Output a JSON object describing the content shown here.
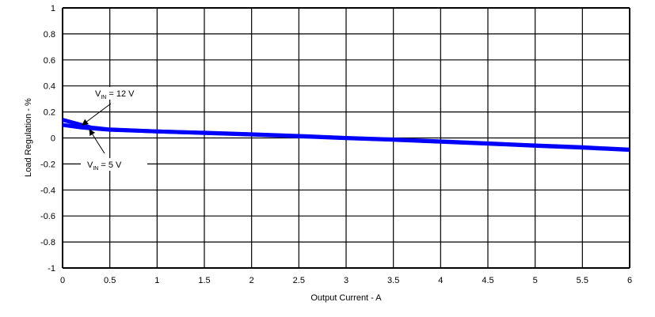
{
  "chart_data": {
    "type": "line",
    "title": "",
    "xlabel": "Output Current - A",
    "ylabel": "Load Regulation  - %",
    "xlim": [
      0,
      6
    ],
    "ylim": [
      -1,
      1
    ],
    "xticks": [
      "0",
      "0.5",
      "1",
      "1.5",
      "2",
      "2.5",
      "3",
      "3.5",
      "4",
      "4.5",
      "5",
      "5.5",
      "6"
    ],
    "yticks": [
      "1",
      "0.8",
      "0.6",
      "0.4",
      "0.2",
      "0",
      "-0.2",
      "-0.4",
      "-0.6",
      "-0.8",
      "-1"
    ],
    "grid": true,
    "series_color": "#0000FF",
    "series": [
      {
        "name": "VIN = 12 V",
        "x": [
          0,
          0.1,
          0.2,
          0.3,
          0.5,
          1,
          1.5,
          2,
          2.5,
          3,
          3.5,
          4,
          4.5,
          5,
          5.5,
          6
        ],
        "y": [
          0.14,
          0.12,
          0.1,
          0.08,
          0.065,
          0.05,
          0.04,
          0.028,
          0.015,
          0,
          -0.012,
          -0.027,
          -0.042,
          -0.058,
          -0.072,
          -0.09
        ]
      },
      {
        "name": "VIN = 5 V",
        "x": [
          0,
          0.1,
          0.2,
          0.3,
          0.5,
          1,
          1.5,
          2,
          2.5,
          3,
          3.5,
          4,
          4.5,
          5,
          5.5,
          6
        ],
        "y": [
          0.1,
          0.09,
          0.08,
          0.074,
          0.063,
          0.05,
          0.038,
          0.027,
          0.013,
          -0.002,
          -0.014,
          -0.029,
          -0.044,
          -0.06,
          -0.075,
          -0.092
        ]
      }
    ],
    "annotations": [
      {
        "prefix": "V",
        "sub": "IN",
        "text": " = 12 V"
      },
      {
        "prefix": "V",
        "sub": "IN",
        "text": " = 5 V"
      }
    ]
  }
}
